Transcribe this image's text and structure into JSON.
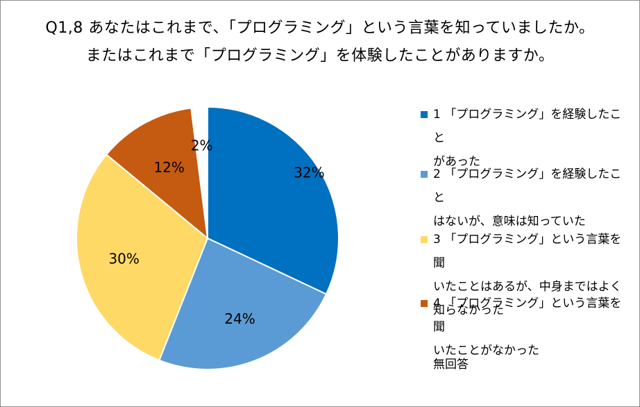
{
  "title": {
    "line1": "Q1,8 あなたはこれまで、「プログラミング」という言葉を知っていましたか。",
    "line2": "またはこれまで「プログラミング」を体験したことがありますか。"
  },
  "chart_data": {
    "type": "pie",
    "title": "Q1,8 あなたはこれまで、「プログラミング」という言葉を知っていましたか。 またはこれまで「プログラミング」を体験したことがありますか。",
    "categories": [
      "1 「プログラミング」を経験したことがあった",
      "2 「プログラミング」を経験したことはないが、意味は知っていた",
      "3 「プログラミング」という言葉を聞いたことはあるが、中身まではよく知らなかった",
      "4 「プログラミング」という言葉を聞いたことがなかった",
      "無回答"
    ],
    "values": [
      32,
      24,
      30,
      12,
      2
    ],
    "data_labels": [
      "32%",
      "24%",
      "30%",
      "12%",
      "2%"
    ],
    "colors": [
      "#0070C0",
      "#5B9BD5",
      "#FFD966",
      "#C55A11",
      "#FFFFFF"
    ],
    "legend_position": "right"
  },
  "legend": [
    {
      "line1": "1 「プログラミング」を経験したこと",
      "line2": "があった",
      "line3": ""
    },
    {
      "line1": "2 「プログラミング」を経験したこと",
      "line2": "はないが、意味は知っていた",
      "line3": ""
    },
    {
      "line1": "3 「プログラミング」という言葉を聞",
      "line2": "いたことはあるが、中身まではよく",
      "line3": "知らなかった"
    },
    {
      "line1": "4 「プログラミング」という言葉を聞",
      "line2": "いたことがなかった",
      "line3": ""
    },
    {
      "line1": "無回答",
      "line2": "",
      "line3": ""
    }
  ]
}
